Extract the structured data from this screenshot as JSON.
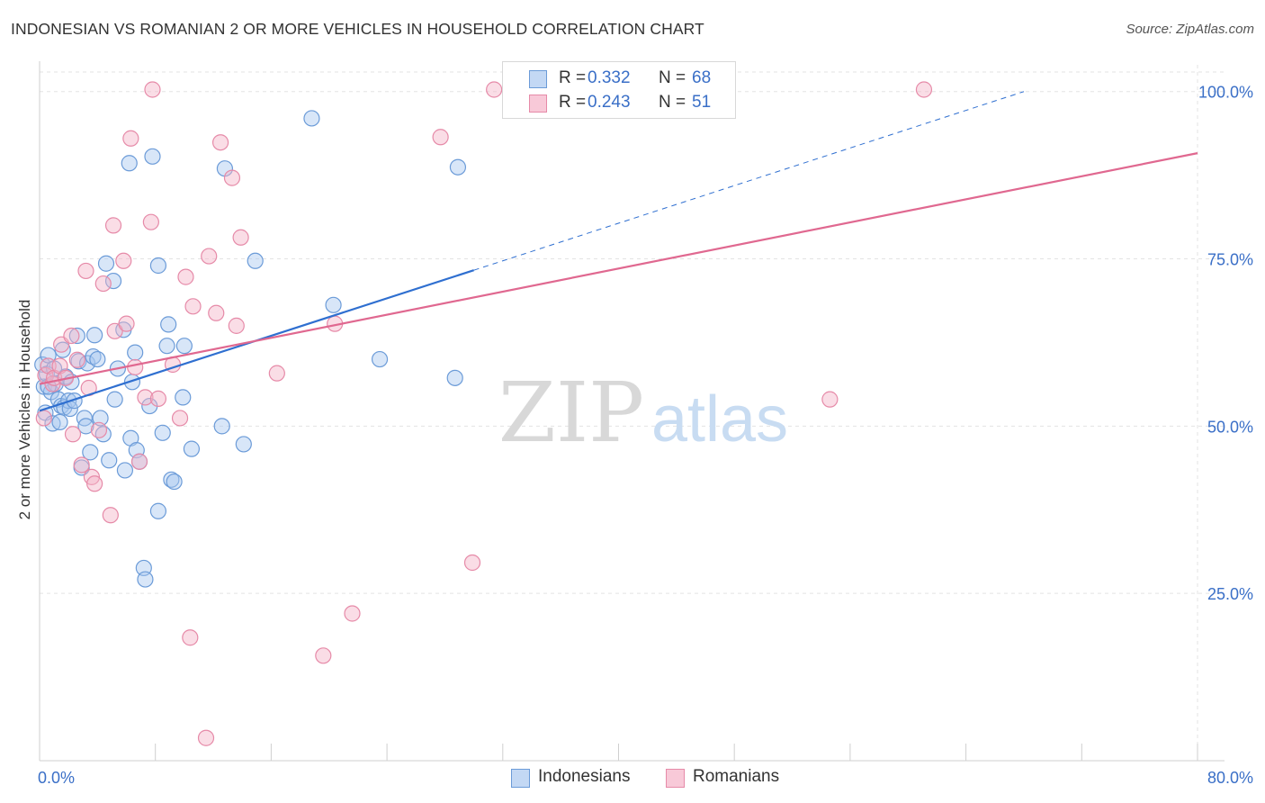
{
  "title": "INDONESIAN VS ROMANIAN 2 OR MORE VEHICLES IN HOUSEHOLD CORRELATION CHART",
  "source": "Source: ZipAtlas.com",
  "watermark": {
    "zip": "ZIP",
    "atlas": "atlas"
  },
  "legend_top": {
    "rows": [
      {
        "r_label": "R =",
        "r_value": "0.332",
        "n_label": "N =",
        "n_value": "68"
      },
      {
        "r_label": "R =",
        "r_value": "0.243",
        "n_label": "N =",
        "n_value": "51"
      }
    ]
  },
  "legend_bottom": {
    "items": [
      "Indonesians",
      "Romanians"
    ]
  },
  "colors": {
    "blue_fill": "#a9c8f0",
    "blue_stroke": "#6b9bd8",
    "blue_line": "#2f6fd0",
    "pink_fill": "#f5b3c8",
    "pink_stroke": "#e68aa8",
    "pink_line": "#e06890",
    "tick_text": "#3a6fc7",
    "grid": "#e3e3e3"
  },
  "chart_data": {
    "type": "scatter",
    "title": "INDONESIAN VS ROMANIAN 2 OR MORE VEHICLES IN HOUSEHOLD CORRELATION CHART",
    "xlabel": "",
    "ylabel": "2 or more Vehicles in Household",
    "xlim": [
      0,
      80
    ],
    "ylim": [
      0,
      104
    ],
    "x_tick_labels": [
      "0.0%",
      "80.0%"
    ],
    "y_ticks": [
      25,
      50,
      75,
      100
    ],
    "y_tick_labels": [
      "25.0%",
      "50.0%",
      "75.0%",
      "100.0%"
    ],
    "grid": true,
    "legend_position": "top-center",
    "series": [
      {
        "name": "Indonesians",
        "color": "#a9c8f0",
        "trend": {
          "x": [
            0,
            30
          ],
          "y": [
            52.3,
            73.3
          ],
          "dashed_extension_to": [
            68,
            100
          ]
        },
        "points": [
          [
            0.2,
            59.2
          ],
          [
            0.3,
            55.9
          ],
          [
            0.4,
            52.0
          ],
          [
            0.5,
            57.8
          ],
          [
            0.6,
            60.6
          ],
          [
            0.8,
            55.1
          ],
          [
            0.9,
            50.4
          ],
          [
            1.1,
            56.3
          ],
          [
            1.3,
            54.0
          ],
          [
            1.4,
            50.6
          ],
          [
            1.5,
            53.0
          ],
          [
            1.6,
            61.4
          ],
          [
            1.7,
            52.8
          ],
          [
            1.8,
            57.4
          ],
          [
            2.0,
            53.8
          ],
          [
            2.1,
            52.6
          ],
          [
            2.2,
            56.6
          ],
          [
            2.4,
            53.8
          ],
          [
            2.7,
            59.7
          ],
          [
            2.9,
            43.8
          ],
          [
            3.1,
            51.2
          ],
          [
            3.2,
            50.0
          ],
          [
            3.3,
            59.4
          ],
          [
            3.5,
            46.1
          ],
          [
            3.7,
            60.4
          ],
          [
            3.8,
            63.6
          ],
          [
            4.2,
            51.2
          ],
          [
            4.4,
            48.8
          ],
          [
            4.6,
            74.3
          ],
          [
            4.8,
            44.9
          ],
          [
            5.1,
            71.7
          ],
          [
            5.2,
            54.0
          ],
          [
            5.4,
            58.6
          ],
          [
            5.8,
            64.4
          ],
          [
            5.9,
            43.4
          ],
          [
            6.2,
            89.3
          ],
          [
            6.3,
            48.2
          ],
          [
            6.6,
            61.0
          ],
          [
            6.7,
            46.4
          ],
          [
            6.9,
            44.7
          ],
          [
            7.2,
            28.8
          ],
          [
            7.3,
            27.1
          ],
          [
            7.6,
            53.0
          ],
          [
            7.8,
            90.3
          ],
          [
            8.2,
            37.3
          ],
          [
            8.2,
            74.0
          ],
          [
            8.5,
            49.0
          ],
          [
            8.8,
            62.0
          ],
          [
            8.9,
            65.2
          ],
          [
            9.1,
            42.0
          ],
          [
            9.3,
            41.7
          ],
          [
            9.9,
            54.3
          ],
          [
            10.0,
            62.0
          ],
          [
            10.5,
            46.6
          ],
          [
            12.6,
            50.0
          ],
          [
            12.8,
            88.5
          ],
          [
            14.1,
            47.3
          ],
          [
            14.9,
            74.7
          ],
          [
            18.8,
            96.0
          ],
          [
            20.3,
            68.1
          ],
          [
            23.5,
            60.0
          ],
          [
            28.7,
            57.2
          ],
          [
            28.9,
            88.7
          ],
          [
            0.6,
            55.9
          ],
          [
            1.0,
            58.6
          ],
          [
            2.6,
            63.5
          ],
          [
            4.0,
            60.0
          ],
          [
            6.4,
            56.6
          ]
        ]
      },
      {
        "name": "Romanians",
        "color": "#f5b3c8",
        "trend": {
          "x": [
            0,
            80
          ],
          "y": [
            56.3,
            90.8
          ]
        },
        "points": [
          [
            0.3,
            51.2
          ],
          [
            0.4,
            57.6
          ],
          [
            0.6,
            59.0
          ],
          [
            0.9,
            56.3
          ],
          [
            1.0,
            57.2
          ],
          [
            1.4,
            59.0
          ],
          [
            1.5,
            62.2
          ],
          [
            1.8,
            57.2
          ],
          [
            2.2,
            63.5
          ],
          [
            2.3,
            48.8
          ],
          [
            2.6,
            59.9
          ],
          [
            2.9,
            44.2
          ],
          [
            3.2,
            73.2
          ],
          [
            3.4,
            55.7
          ],
          [
            3.6,
            42.4
          ],
          [
            3.8,
            41.4
          ],
          [
            4.1,
            49.4
          ],
          [
            4.4,
            71.3
          ],
          [
            4.9,
            36.7
          ],
          [
            5.1,
            80.0
          ],
          [
            5.2,
            64.2
          ],
          [
            5.8,
            74.7
          ],
          [
            6.0,
            65.3
          ],
          [
            6.3,
            93.0
          ],
          [
            6.6,
            58.8
          ],
          [
            6.9,
            44.7
          ],
          [
            7.3,
            54.3
          ],
          [
            7.7,
            80.5
          ],
          [
            7.8,
            100.3
          ],
          [
            8.2,
            54.1
          ],
          [
            9.2,
            59.2
          ],
          [
            9.7,
            51.2
          ],
          [
            10.1,
            72.3
          ],
          [
            10.4,
            18.4
          ],
          [
            10.6,
            67.9
          ],
          [
            11.5,
            3.4
          ],
          [
            11.7,
            75.4
          ],
          [
            12.2,
            66.9
          ],
          [
            12.5,
            92.4
          ],
          [
            13.3,
            87.1
          ],
          [
            13.6,
            65.0
          ],
          [
            13.9,
            78.2
          ],
          [
            16.4,
            57.9
          ],
          [
            19.6,
            15.7
          ],
          [
            20.4,
            65.3
          ],
          [
            21.6,
            22.0
          ],
          [
            27.7,
            93.2
          ],
          [
            29.9,
            29.6
          ],
          [
            31.4,
            100.3
          ],
          [
            54.6,
            54.0
          ],
          [
            61.1,
            100.3
          ]
        ]
      }
    ]
  }
}
